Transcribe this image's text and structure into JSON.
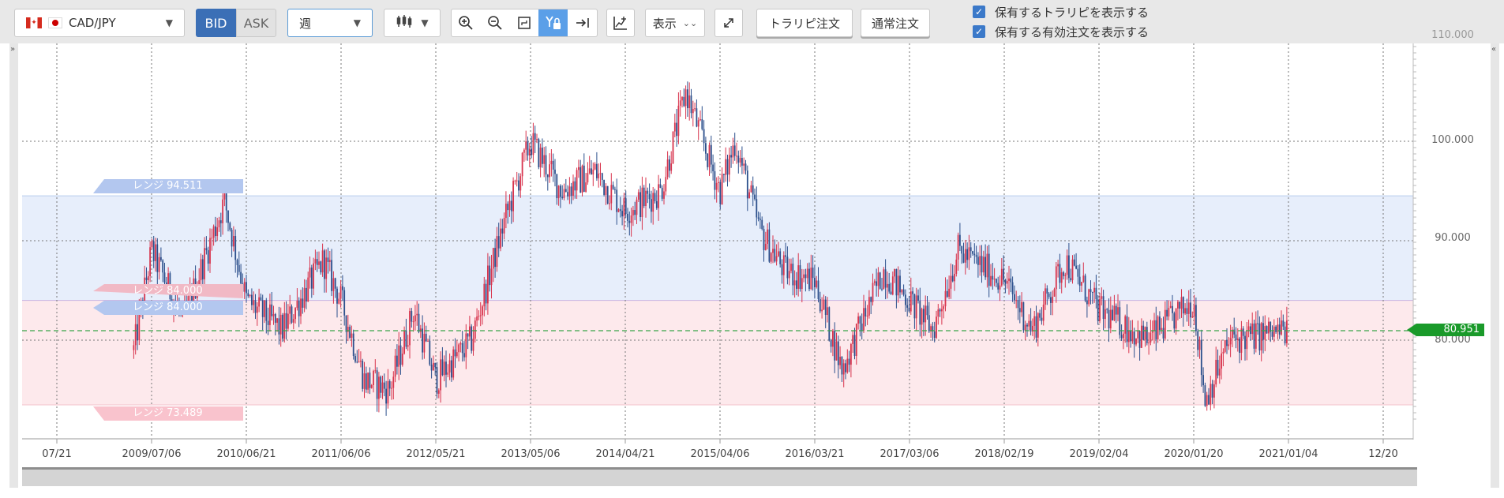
{
  "toolbar": {
    "pair_label": "CAD/JPY",
    "bid_label": "BID",
    "ask_label": "ASK",
    "period_label": "週",
    "display_label": "表示",
    "trarepi_order_label": "トラリピ注文",
    "normal_order_label": "通常注文",
    "show_trarepi_label": "保有するトラリピを表示する",
    "show_orders_label": "保有する有効注文を表示する",
    "show_trarepi_checked": true,
    "show_orders_checked": true
  },
  "chart": {
    "y_ticks": [
      "100.000",
      "90.000",
      "80.000"
    ],
    "y_top_partial": "110.000",
    "x_ticks": [
      "07/21",
      "2009/07/06",
      "2010/06/21",
      "2011/06/06",
      "2012/05/21",
      "2013/05/06",
      "2014/04/21",
      "2015/04/06",
      "2016/03/21",
      "2017/03/06",
      "2018/02/19",
      "2019/02/04",
      "2020/01/20",
      "2021/01/04",
      "12/20"
    ],
    "current_price": "80.951",
    "range_upper_label": "レンジ 94.511",
    "range_lower_label": "レンジ 73.489",
    "range_mid_label_a": "レンジ 84.000",
    "range_mid_label_b": "レンジ 84.000",
    "colors": {
      "up": "#d8344d",
      "down": "#2b4f8c",
      "range_upper_fill": "#e7eefb",
      "range_lower_fill": "#fde9ec",
      "current_price_bg": "#1a9a2a",
      "current_price_line": "#3aa54a"
    }
  },
  "chart_data": {
    "type": "candlestick",
    "instrument": "CAD/JPY",
    "period": "週",
    "ylim": [
      70,
      110
    ],
    "y_ticks": [
      80,
      90,
      100
    ],
    "current_price": 80.951,
    "ranges": [
      {
        "from": 84.0,
        "to": 94.511
      },
      {
        "from": 73.489,
        "to": 84.0
      }
    ],
    "approx_path": [
      {
        "x": "2009/05",
        "close": 79
      },
      {
        "x": "2009/07/06",
        "close": 89
      },
      {
        "x": "2009/11",
        "close": 82
      },
      {
        "x": "2010/04",
        "close": 94
      },
      {
        "x": "2010/06/21",
        "close": 84
      },
      {
        "x": "2010/11",
        "close": 81
      },
      {
        "x": "2011/04",
        "close": 88
      },
      {
        "x": "2011/06/06",
        "close": 84
      },
      {
        "x": "2011/09",
        "close": 76
      },
      {
        "x": "2011/12",
        "close": 75
      },
      {
        "x": "2012/03",
        "close": 83
      },
      {
        "x": "2012/05/21",
        "close": 76
      },
      {
        "x": "2012/10",
        "close": 80
      },
      {
        "x": "2013/02",
        "close": 92
      },
      {
        "x": "2013/05/06",
        "close": 100
      },
      {
        "x": "2013/09",
        "close": 95
      },
      {
        "x": "2014/01",
        "close": 97
      },
      {
        "x": "2014/04/21",
        "close": 93
      },
      {
        "x": "2014/09",
        "close": 95
      },
      {
        "x": "2014/12",
        "close": 105
      },
      {
        "x": "2015/04/06",
        "close": 95
      },
      {
        "x": "2015/06",
        "close": 100
      },
      {
        "x": "2015/09",
        "close": 91
      },
      {
        "x": "2015/12",
        "close": 87
      },
      {
        "x": "2016/03/21",
        "close": 86
      },
      {
        "x": "2016/07",
        "close": 77
      },
      {
        "x": "2016/12",
        "close": 87
      },
      {
        "x": "2017/03/06",
        "close": 84
      },
      {
        "x": "2017/06",
        "close": 81
      },
      {
        "x": "2017/09",
        "close": 89
      },
      {
        "x": "2018/02/19",
        "close": 86
      },
      {
        "x": "2018/06",
        "close": 81
      },
      {
        "x": "2018/10",
        "close": 88
      },
      {
        "x": "2019/02/04",
        "close": 83
      },
      {
        "x": "2019/08",
        "close": 80
      },
      {
        "x": "2020/01/20",
        "close": 84
      },
      {
        "x": "2020/03",
        "close": 74
      },
      {
        "x": "2020/06",
        "close": 80
      },
      {
        "x": "2021/01/04",
        "close": 81
      }
    ]
  }
}
